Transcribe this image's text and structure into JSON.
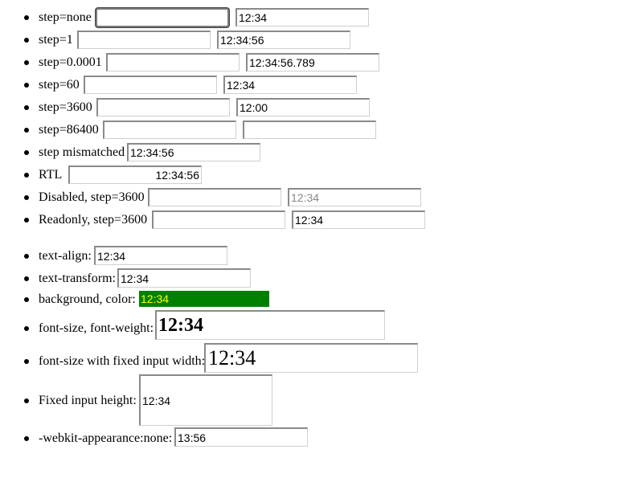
{
  "rows": [
    {
      "label": "step=none",
      "a": "",
      "b": "12:34"
    },
    {
      "label": "step=1",
      "a": "",
      "b": "12:34:56"
    },
    {
      "label": "step=0.0001",
      "a": "",
      "b": "12:34:56.789"
    },
    {
      "label": "step=60",
      "a": "",
      "b": "12:34"
    },
    {
      "label": "step=3600",
      "a": "",
      "b": "12:00"
    },
    {
      "label": "step=86400",
      "a": "",
      "b": ""
    },
    {
      "label": "step mismatched",
      "a": "12:34:56"
    },
    {
      "label": "RTL",
      "a": "12:34:56"
    },
    {
      "label": "Disabled, step=3600",
      "a": "",
      "b": "12:34"
    },
    {
      "label": "Readonly, step=3600",
      "a": "",
      "b": "12:34"
    }
  ],
  "styled": [
    {
      "label": "text-align:",
      "value": "12:34"
    },
    {
      "label": "text-transform:",
      "value": "12:34"
    },
    {
      "label": "background, color:",
      "value": "12:34"
    },
    {
      "label": "font-size, font-weight:",
      "value": "12:34"
    },
    {
      "label": "font-size with fixed input width:",
      "value": "12:34"
    },
    {
      "label": "Fixed input height:",
      "value": "12:34"
    },
    {
      "label": "-webkit-appearance:none:",
      "value": "13:56"
    }
  ],
  "colors": {
    "green_bg": "#008000",
    "green_text": "#ffff00",
    "disabled_text": "#888888"
  }
}
